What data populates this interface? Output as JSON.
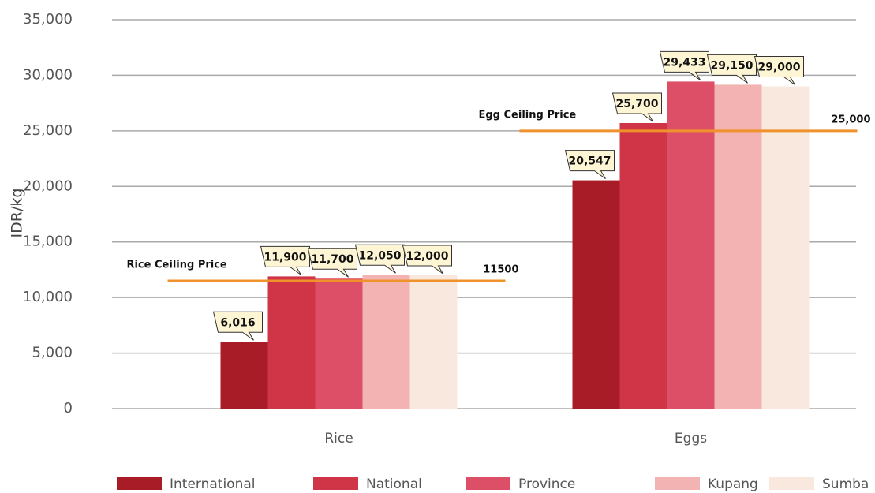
{
  "chart_data": {
    "type": "bar",
    "y_label": "IDR/kg",
    "categories": [
      "Rice",
      "Eggs"
    ],
    "series": [
      {
        "name": "International",
        "color": "#a81c28",
        "values": [
          6016,
          20547
        ],
        "value_labels": [
          "6,016",
          "20,547"
        ]
      },
      {
        "name": "National",
        "color": "#cf3547",
        "values": [
          11900,
          25700
        ],
        "value_labels": [
          "11,900",
          "25,700"
        ]
      },
      {
        "name": "Province",
        "color": "#dd4f66",
        "values": [
          11700,
          29433
        ],
        "value_labels": [
          "11,700",
          "29,433"
        ]
      },
      {
        "name": "Kupang",
        "color": "#f3b3b2",
        "values": [
          12050,
          29150
        ],
        "value_labels": [
          "12,050",
          "29,150"
        ]
      },
      {
        "name": "Sumba",
        "color": "#f8e8dd",
        "values": [
          12000,
          29000
        ],
        "value_labels": [
          "12,000",
          "29,000"
        ]
      }
    ],
    "annotations": [
      {
        "label": "Rice Ceiling Price",
        "value": 11500,
        "color": "#f0922b"
      },
      {
        "label": "Egg Ceiling Price",
        "value": 25000,
        "value_label": "25,000",
        "color": "#f0922b"
      }
    ],
    "ylim": [
      0,
      35000
    ],
    "yticks": [
      0,
      {
        "value": 5000,
        "label": "5,000"
      },
      {
        "value": 10000,
        "label": "10,000"
      },
      {
        "value": 15000,
        "label": "15,000"
      },
      {
        "value": 20000,
        "label": "20,000"
      },
      {
        "value": 25000,
        "label": "25,000"
      },
      {
        "value": 30000,
        "label": "30,000"
      },
      {
        "value": 35000,
        "label": "35,000"
      }
    ],
    "grid": true,
    "legend": "bottom"
  }
}
